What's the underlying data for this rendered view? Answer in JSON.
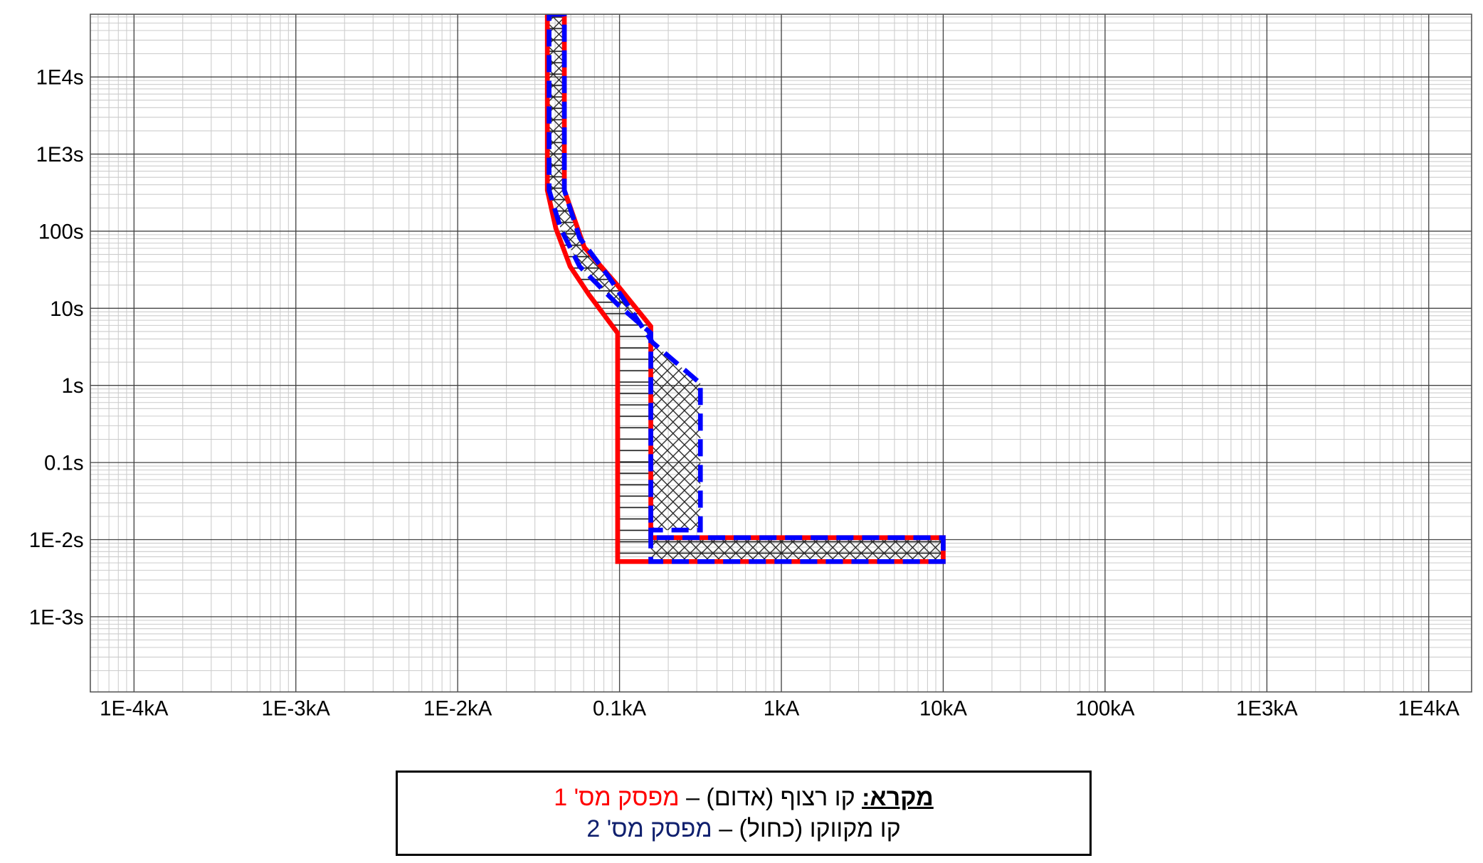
{
  "chart_data": {
    "type": "line",
    "xscale": "log",
    "yscale": "log",
    "grid": true,
    "xlim": [
      5.37e-05,
      18400
    ],
    "xticks": [
      {
        "value": 0.0001,
        "label": "1E-4kA"
      },
      {
        "value": 0.001,
        "label": "1E-3kA"
      },
      {
        "value": 0.01,
        "label": "1E-2kA"
      },
      {
        "value": 0.1,
        "label": "0.1kA"
      },
      {
        "value": 1,
        "label": "1kA"
      },
      {
        "value": 10,
        "label": "10kA"
      },
      {
        "value": 100,
        "label": "100kA"
      },
      {
        "value": 1000,
        "label": "1E3kA"
      },
      {
        "value": 10000,
        "label": "1E4kA"
      }
    ],
    "ylim": [
      0.000106,
      65000
    ],
    "yticks": [
      {
        "value": 0.001,
        "label": "1E-3s"
      },
      {
        "value": 0.01,
        "label": "1E-2s"
      },
      {
        "value": 0.1,
        "label": "0.1s"
      },
      {
        "value": 1,
        "label": "1s"
      },
      {
        "value": 10,
        "label": "10s"
      },
      {
        "value": 100,
        "label": "100s"
      },
      {
        "value": 1000,
        "label": "1E3s"
      },
      {
        "value": 10000,
        "label": "1E4s"
      }
    ],
    "legend_title": "מקרא:",
    "series": [
      {
        "name": "מפסק מס' 1",
        "description": "קו רצוף (אדום) –",
        "color": "#ff0000",
        "style": "solid",
        "hatch": "horizontal",
        "x": [
          0.0358,
          0.0456,
          0.0456,
          0.0606,
          0.0973,
          0.156,
          0.156,
          10,
          10,
          0.0973,
          0.0973,
          0.0649,
          0.0495,
          0.0404,
          0.0358
        ],
        "y": [
          65000,
          65000,
          340,
          61.7,
          19.8,
          5.83,
          0.0106,
          0.0106,
          0.0052,
          0.0052,
          4.77,
          14.9,
          34.9,
          109,
          340
        ]
      },
      {
        "name": "מפסק מס' 2",
        "description": "קו מקווקו (כחול) –",
        "color": "#0000ff",
        "name_color": "#10206e",
        "style": "dashed",
        "hatch": "cross",
        "x": [
          0.0367,
          0.0456,
          0.0456,
          0.0567,
          0.085,
          0.16,
          0.316,
          0.316,
          0.156,
          0.156,
          10,
          10,
          0.156,
          0.156,
          0.0973,
          0.0567,
          0.0432,
          0.0367
        ],
        "y": [
          65000,
          65000,
          340,
          82,
          26.3,
          3.6,
          1.06,
          0.0133,
          0.0133,
          0.0106,
          0.0106,
          0.0052,
          0.0052,
          4.77,
          11.2,
          34.9,
          109,
          340
        ]
      }
    ]
  }
}
